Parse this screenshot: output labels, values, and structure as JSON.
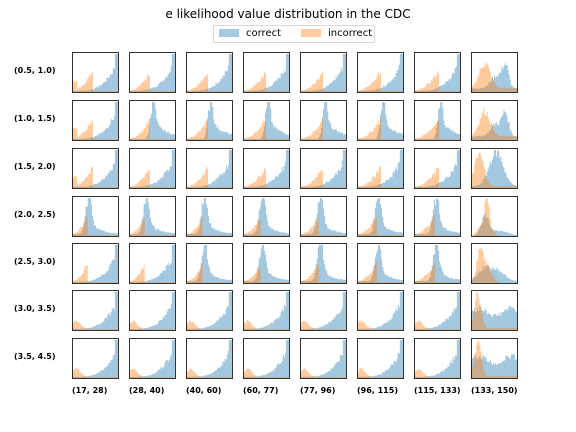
{
  "chart_data": {
    "type": "histogram-grid",
    "title": "e likelihood value distribution in the CDC",
    "legend": {
      "placement": "top-center",
      "entries": [
        "correct",
        "incorrect"
      ]
    },
    "colors": {
      "correct": "#1f77b4",
      "incorrect": "#ff7f0e",
      "alpha": 0.4
    },
    "row_labels": [
      "(0.5, 1.0)",
      "(1.0, 1.5)",
      "(1.5, 2.0)",
      "(2.0, 2.5)",
      "(2.5, 3.0)",
      "(3.0, 3.5)",
      "(3.5, 4.5)"
    ],
    "col_labels": [
      "(17, 28)",
      "(28, 40)",
      "(40, 60)",
      "(60, 77)",
      "(77, 96)",
      "(96, 115)",
      "(115, 133)",
      "(133, 150)"
    ],
    "axis_ticks": false,
    "grid": false
  }
}
